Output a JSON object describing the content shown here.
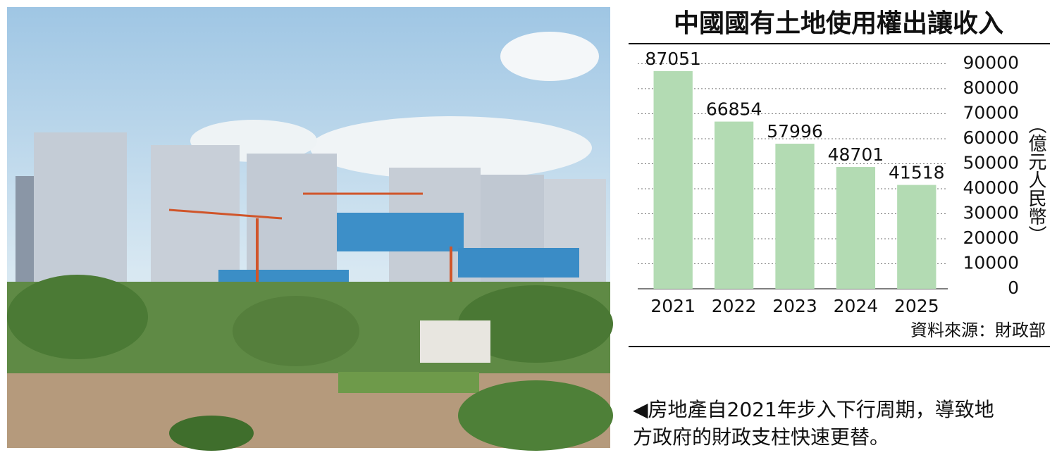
{
  "chart_data": {
    "type": "bar",
    "title": "中國國有土地使用權出讓收入",
    "categories": [
      "2021",
      "2022",
      "2023",
      "2024",
      "2025"
    ],
    "values": [
      87051,
      66854,
      57996,
      48701,
      41518
    ],
    "color": "#b3dbb3",
    "ylabel": "（億元人民幣）",
    "ylim": [
      0,
      98000
    ],
    "yticks": [
      0,
      10000,
      20000,
      30000,
      40000,
      50000,
      60000,
      70000,
      80000,
      90000
    ],
    "grid": true,
    "source": "資料來源：財政部"
  },
  "caption": [
    "◀房地產自2021年步入下行周期，導致地",
    "方政府的財政支柱快速更替。"
  ]
}
